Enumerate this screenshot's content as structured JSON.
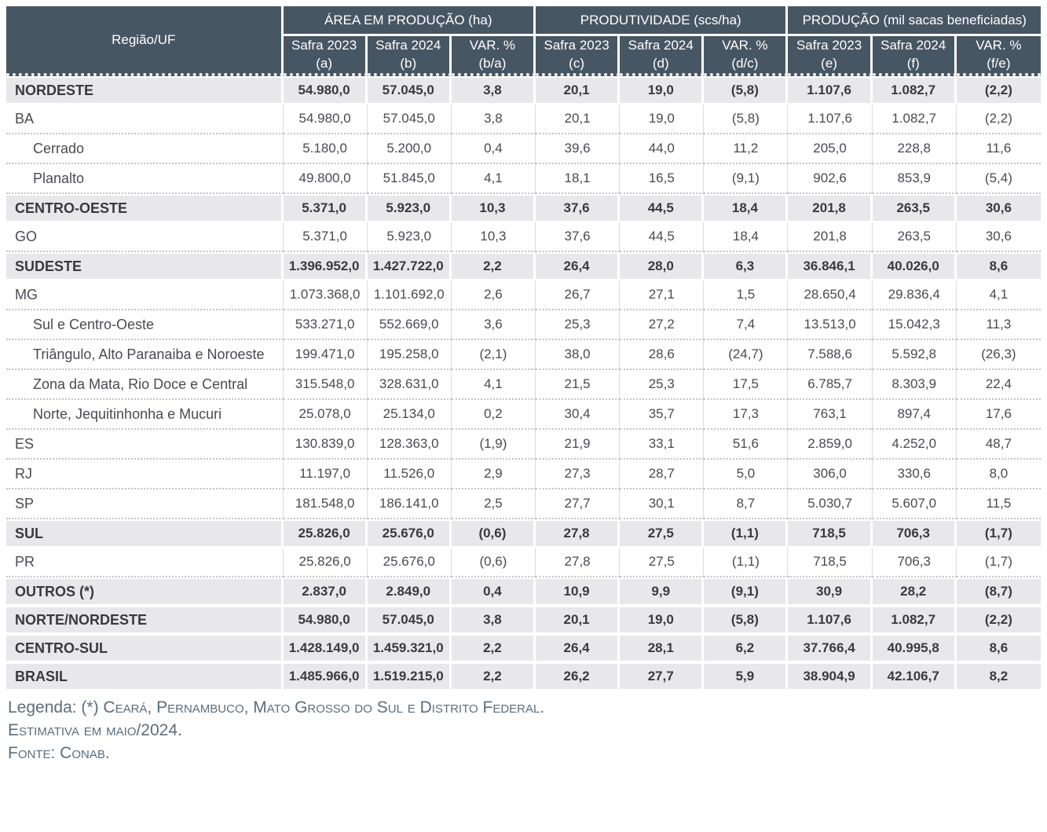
{
  "chart_data": {
    "type": "table",
    "region_col": "Região/UF",
    "column_groups": [
      {
        "label": "ÁREA EM PRODUÇÃO (ha)"
      },
      {
        "label": "PRODUTIVIDADE (scs/ha)"
      },
      {
        "label": "PRODUÇÃO (mil sacas beneficiadas)"
      }
    ],
    "sub_columns": [
      {
        "line1": "Safra 2023",
        "line2": "(a)"
      },
      {
        "line1": "Safra 2024",
        "line2": "(b)"
      },
      {
        "line1": "VAR. %",
        "line2": "(b/a)"
      },
      {
        "line1": "Safra 2023",
        "line2": "(c)"
      },
      {
        "line1": "Safra 2024",
        "line2": "(d)"
      },
      {
        "line1": "VAR. %",
        "line2": "(d/c)"
      },
      {
        "line1": "Safra 2023",
        "line2": "(e)"
      },
      {
        "line1": "Safra 2024",
        "line2": "(f)"
      },
      {
        "line1": "VAR. %",
        "line2": "(f/e)"
      }
    ],
    "rows": [
      {
        "label": "NORDESTE",
        "type": "region",
        "values": [
          "54.980,0",
          "57.045,0",
          "3,8",
          "20,1",
          "19,0",
          "(5,8)",
          "1.107,6",
          "1.082,7",
          "(2,2)"
        ]
      },
      {
        "label": "BA",
        "type": "state",
        "values": [
          "54.980,0",
          "57.045,0",
          "3,8",
          "20,1",
          "19,0",
          "(5,8)",
          "1.107,6",
          "1.082,7",
          "(2,2)"
        ]
      },
      {
        "label": "Cerrado",
        "type": "sub",
        "values": [
          "5.180,0",
          "5.200,0",
          "0,4",
          "39,6",
          "44,0",
          "11,2",
          "205,0",
          "228,8",
          "11,6"
        ]
      },
      {
        "label": "Planalto",
        "type": "sub",
        "values": [
          "49.800,0",
          "51.845,0",
          "4,1",
          "18,1",
          "16,5",
          "(9,1)",
          "902,6",
          "853,9",
          "(5,4)"
        ]
      },
      {
        "label": "CENTRO-OESTE",
        "type": "region",
        "values": [
          "5.371,0",
          "5.923,0",
          "10,3",
          "37,6",
          "44,5",
          "18,4",
          "201,8",
          "263,5",
          "30,6"
        ]
      },
      {
        "label": "GO",
        "type": "state",
        "values": [
          "5.371,0",
          "5.923,0",
          "10,3",
          "37,6",
          "44,5",
          "18,4",
          "201,8",
          "263,5",
          "30,6"
        ]
      },
      {
        "label": "SUDESTE",
        "type": "region",
        "values": [
          "1.396.952,0",
          "1.427.722,0",
          "2,2",
          "26,4",
          "28,0",
          "6,3",
          "36.846,1",
          "40.026,0",
          "8,6"
        ]
      },
      {
        "label": "MG",
        "type": "state",
        "values": [
          "1.073.368,0",
          "1.101.692,0",
          "2,6",
          "26,7",
          "27,1",
          "1,5",
          "28.650,4",
          "29.836,4",
          "4,1"
        ]
      },
      {
        "label": "Sul e Centro-Oeste",
        "type": "sub",
        "values": [
          "533.271,0",
          "552.669,0",
          "3,6",
          "25,3",
          "27,2",
          "7,4",
          "13.513,0",
          "15.042,3",
          "11,3"
        ]
      },
      {
        "label": "Triângulo, Alto Paranaiba e Noroeste",
        "type": "sub",
        "values": [
          "199.471,0",
          "195.258,0",
          "(2,1)",
          "38,0",
          "28,6",
          "(24,7)",
          "7.588,6",
          "5.592,8",
          "(26,3)"
        ]
      },
      {
        "label": "Zona da Mata, Rio Doce e Central",
        "type": "sub",
        "values": [
          "315.548,0",
          "328.631,0",
          "4,1",
          "21,5",
          "25,3",
          "17,5",
          "6.785,7",
          "8.303,9",
          "22,4"
        ]
      },
      {
        "label": "Norte, Jequitinhonha e Mucuri",
        "type": "sub",
        "values": [
          "25.078,0",
          "25.134,0",
          "0,2",
          "30,4",
          "35,7",
          "17,3",
          "763,1",
          "897,4",
          "17,6"
        ]
      },
      {
        "label": "ES",
        "type": "state",
        "values": [
          "130.839,0",
          "128.363,0",
          "(1,9)",
          "21,9",
          "33,1",
          "51,6",
          "2.859,0",
          "4.252,0",
          "48,7"
        ]
      },
      {
        "label": "RJ",
        "type": "state",
        "values": [
          "11.197,0",
          "11.526,0",
          "2,9",
          "27,3",
          "28,7",
          "5,0",
          "306,0",
          "330,6",
          "8,0"
        ]
      },
      {
        "label": "SP",
        "type": "state",
        "values": [
          "181.548,0",
          "186.141,0",
          "2,5",
          "27,7",
          "30,1",
          "8,7",
          "5.030,7",
          "5.607,0",
          "11,5"
        ]
      },
      {
        "label": "SUL",
        "type": "region",
        "values": [
          "25.826,0",
          "25.676,0",
          "(0,6)",
          "27,8",
          "27,5",
          "(1,1)",
          "718,5",
          "706,3",
          "(1,7)"
        ]
      },
      {
        "label": "PR",
        "type": "state",
        "values": [
          "25.826,0",
          "25.676,0",
          "(0,6)",
          "27,8",
          "27,5",
          "(1,1)",
          "718,5",
          "706,3",
          "(1,7)"
        ]
      },
      {
        "label": "OUTROS (*)",
        "type": "region",
        "values": [
          "2.837,0",
          "2.849,0",
          "0,4",
          "10,9",
          "9,9",
          "(9,1)",
          "30,9",
          "28,2",
          "(8,7)"
        ]
      },
      {
        "label": "NORTE/NORDESTE",
        "type": "region",
        "values": [
          "54.980,0",
          "57.045,0",
          "3,8",
          "20,1",
          "19,0",
          "(5,8)",
          "1.107,6",
          "1.082,7",
          "(2,2)"
        ]
      },
      {
        "label": "CENTRO-SUL",
        "type": "region",
        "values": [
          "1.428.149,0",
          "1.459.321,0",
          "2,2",
          "26,4",
          "28,1",
          "6,2",
          "37.766,4",
          "40.995,8",
          "8,6"
        ]
      },
      {
        "label": "BRASIL",
        "type": "region",
        "values": [
          "1.485.966,0",
          "1.519.215,0",
          "2,2",
          "26,2",
          "27,7",
          "5,9",
          "38.904,9",
          "42.106,7",
          "8,2"
        ]
      }
    ]
  },
  "footer": {
    "legend_prefix": "Legenda: (*) ",
    "legend_smallcaps": "Ceará, Pernambuco, Mato Grosso do Sul e Distrito Federal.",
    "estimate": "Estimativa em maio/2024.",
    "source": "Fonte: Conab."
  },
  "colors": {
    "header_bg": "#475663",
    "header_text": "#ffffff",
    "region_row_bg": "#e8e8eb",
    "row_text": "#4a4a52",
    "region_text": "#393941",
    "grid_line": "#dcdce0",
    "dotted_line": "#c4c4c9",
    "footer_text": "#5c6d7b",
    "page_bg": "#ffffff"
  }
}
